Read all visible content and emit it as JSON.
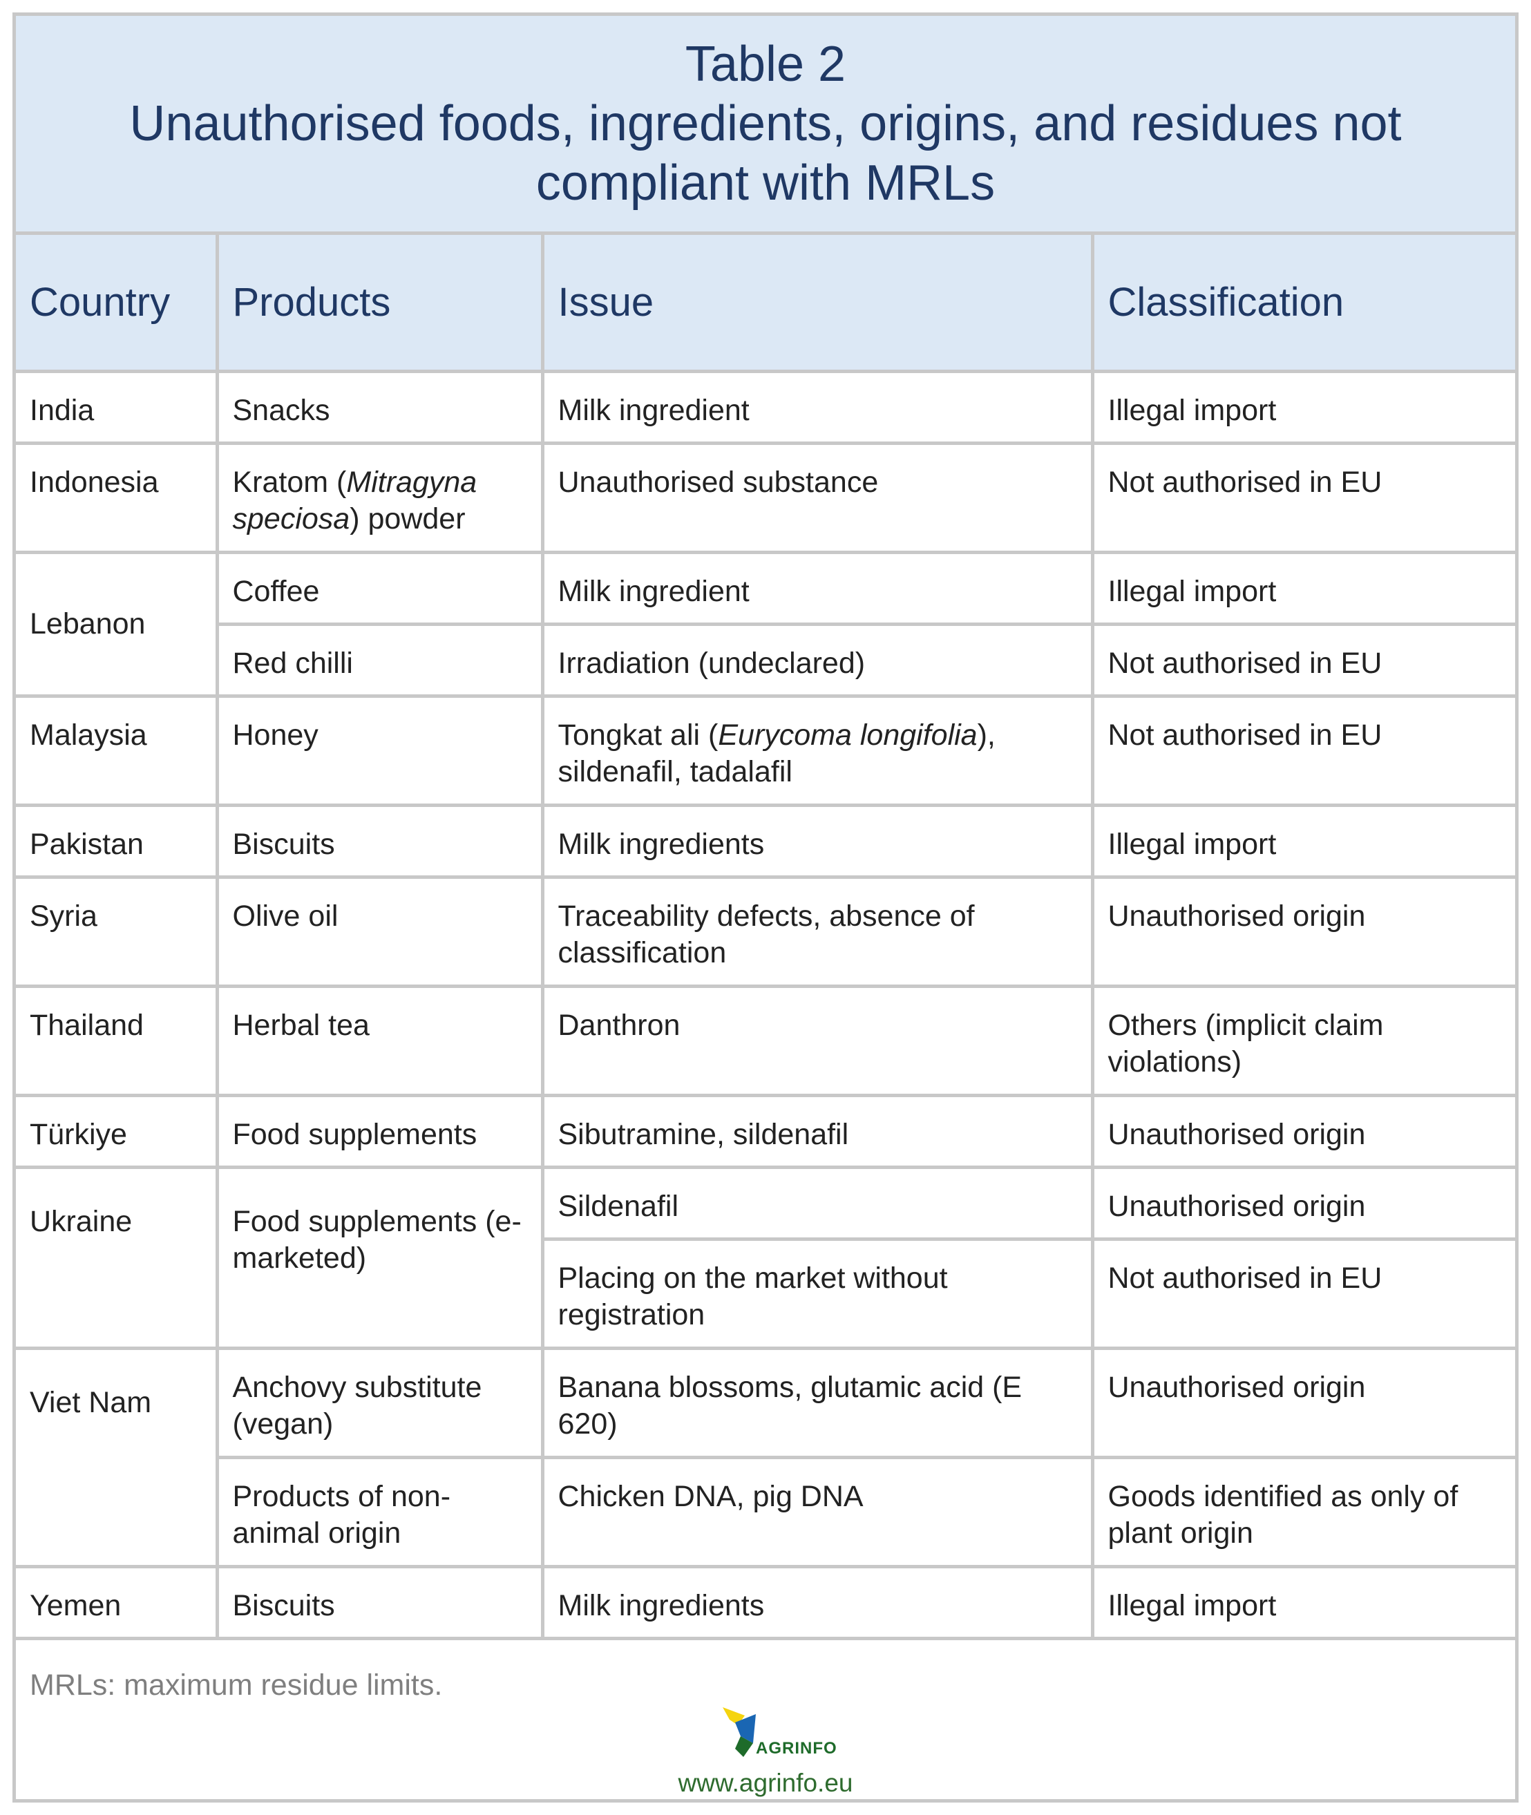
{
  "title": {
    "line1": "Table 2",
    "line2": "Unauthorised foods, ingredients, origins, and residues not",
    "line3": "compliant with MRLs"
  },
  "headers": [
    "Country",
    "Products",
    "Issue",
    "Classification"
  ],
  "rows": {
    "india": {
      "country": "India",
      "product": "Snacks",
      "issue": "Milk ingredient",
      "classification": "Illegal import"
    },
    "indonesia": {
      "country": "Indonesia",
      "product_pre": "Kratom (",
      "product_italic": "Mitragyna speciosa",
      "product_post": ") powder",
      "issue": "Unauthorised substance",
      "classification": "Not authorised in EU"
    },
    "lebanon": {
      "country": "Lebanon",
      "a": {
        "product": "Coffee",
        "issue": "Milk ingredient",
        "classification": "Illegal import"
      },
      "b": {
        "product": "Red chilli",
        "issue": "Irradiation (undeclared)",
        "classification": "Not authorised in EU"
      }
    },
    "malaysia": {
      "country": "Malaysia",
      "product": "Honey",
      "issue_pre": "Tongkat ali (",
      "issue_italic": "Eurycoma longifolia",
      "issue_post": "), sildenafil, tadalafil",
      "classification": "Not authorised in EU"
    },
    "pakistan": {
      "country": "Pakistan",
      "product": "Biscuits",
      "issue": "Milk ingredients",
      "classification": "Illegal import"
    },
    "syria": {
      "country": "Syria",
      "product": "Olive oil",
      "issue": "Traceability defects, absence of classification",
      "classification": "Unauthorised origin"
    },
    "thailand": {
      "country": "Thailand",
      "product": "Herbal tea",
      "issue": "Danthron",
      "classification": "Others (implicit claim violations)"
    },
    "turkiye": {
      "country": "Türkiye",
      "product": "Food supplements",
      "issue": "Sibutramine, sildenafil",
      "classification": "Unauthorised origin"
    },
    "ukraine": {
      "country": "Ukraine",
      "product": "Food supplements (e-marketed)",
      "a": {
        "issue": "Sildenafil",
        "classification": "Unauthorised origin"
      },
      "b": {
        "issue": "Placing on the market without registration",
        "classification": "Not authorised in EU"
      }
    },
    "vietnam": {
      "country": "Viet Nam",
      "a": {
        "product": "Anchovy substitute (vegan)",
        "issue": "Banana blossoms, glutamic acid (E 620)",
        "classification": "Unauthorised origin"
      },
      "b": {
        "product": "Products of non-animal origin",
        "issue": "Chicken DNA, pig DNA",
        "classification": "Goods identified as only of plant origin"
      }
    },
    "yemen": {
      "country": "Yemen",
      "product": "Biscuits",
      "issue": "Milk ingredients",
      "classification": "Illegal import"
    }
  },
  "footnote": "MRLs: maximum residue limits.",
  "brand": {
    "name": "AGRINFO",
    "url": "www.agrinfo.eu",
    "colors": {
      "yellow": "#f5d40f",
      "blue": "#1a66b3",
      "green": "#1e6b2a"
    }
  }
}
